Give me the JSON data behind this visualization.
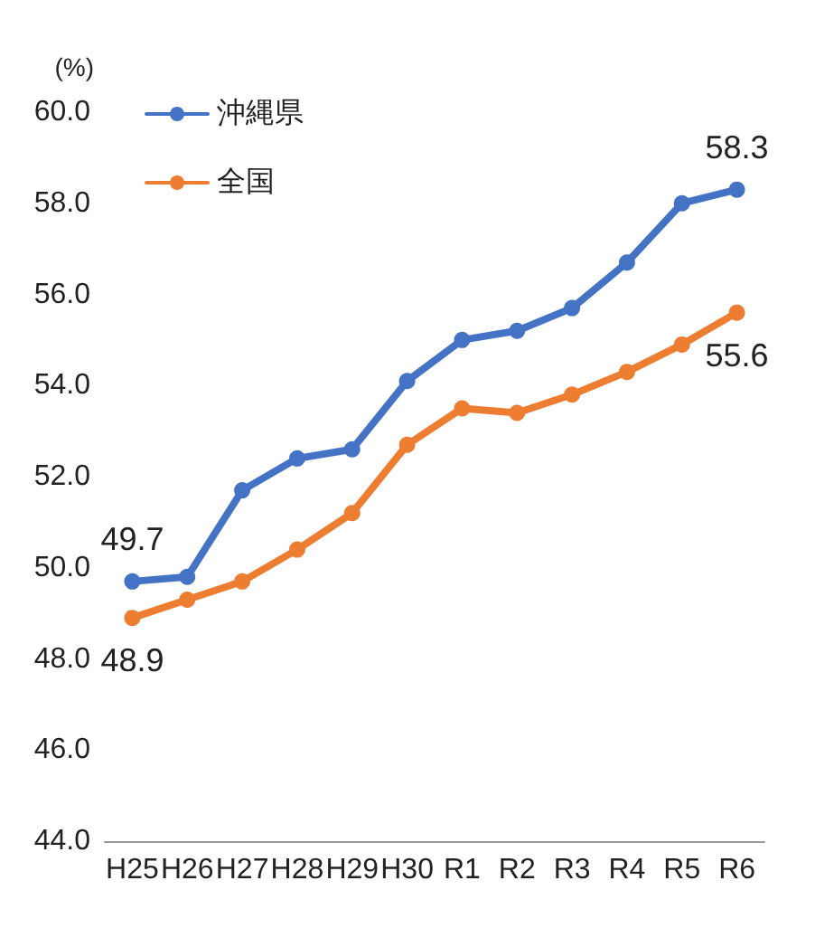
{
  "chart_data": {
    "type": "line",
    "ylabel": "(%)",
    "categories": [
      "H25",
      "H26",
      "H27",
      "H28",
      "H29",
      "H30",
      "R1",
      "R2",
      "R3",
      "R4",
      "R5",
      "R6"
    ],
    "series": [
      {
        "name": "沖縄県",
        "color": "#4472c4",
        "values": [
          49.7,
          49.8,
          51.7,
          52.4,
          52.6,
          54.1,
          55.0,
          55.2,
          55.7,
          56.7,
          58.0,
          58.3
        ],
        "value_labels": [
          "49.7",
          null,
          null,
          null,
          null,
          null,
          null,
          null,
          null,
          null,
          null,
          "58.3"
        ]
      },
      {
        "name": "全国",
        "color": "#ed7d31",
        "values": [
          48.9,
          49.3,
          49.7,
          50.4,
          51.2,
          52.7,
          53.5,
          53.4,
          53.8,
          54.3,
          54.9,
          55.6
        ],
        "value_labels": [
          "48.9",
          null,
          null,
          null,
          null,
          null,
          null,
          null,
          null,
          null,
          null,
          "55.6"
        ]
      }
    ],
    "ylim": [
      44,
      60
    ],
    "yticks": [
      {
        "value": 44,
        "label": "44.0"
      },
      {
        "value": 46,
        "label": "46.0"
      },
      {
        "value": 48,
        "label": "48.0"
      },
      {
        "value": 50,
        "label": "50.0"
      },
      {
        "value": 52,
        "label": "52.0"
      },
      {
        "value": 54,
        "label": "54.0"
      },
      {
        "value": 56,
        "label": "56.0"
      },
      {
        "value": 58,
        "label": "58.0"
      },
      {
        "value": 60,
        "label": "60.0"
      }
    ],
    "grid": false,
    "legend": "top left",
    "marker": "circle",
    "line_style": "solid"
  }
}
